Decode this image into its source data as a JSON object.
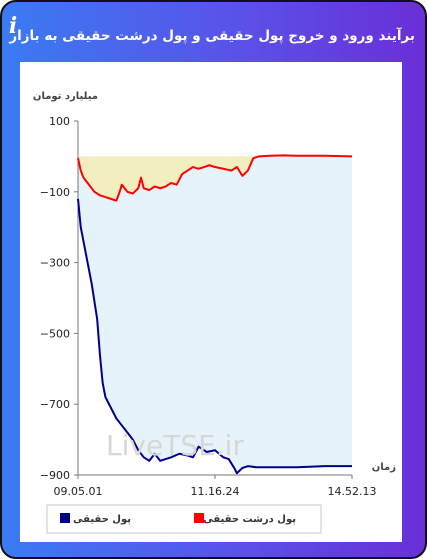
{
  "header": {
    "title": "برآیند ورود و خروج پول حقیقی و پول درشت حقیقی به بازار",
    "info_icon": "info-icon",
    "link_icon": "link-icon"
  },
  "chart_data": {
    "type": "area",
    "ylabel": "میلیارد تومان",
    "xlabel": "زمان",
    "ylim": [
      -900,
      100
    ],
    "yticks": [
      100,
      -100,
      -300,
      -500,
      -700,
      -900
    ],
    "x_tick_labels": [
      "09.05.01",
      "11.16.24",
      "14.52.13"
    ],
    "watermark": "LiveTSE.ir",
    "legend_position": "bottom",
    "series": [
      {
        "name": "پول حقیقی",
        "color": "#00008b",
        "fill": "#e6f3fb",
        "x": [
          0,
          0.01,
          0.03,
          0.05,
          0.07,
          0.08,
          0.09,
          0.1,
          0.12,
          0.14,
          0.16,
          0.18,
          0.2,
          0.22,
          0.24,
          0.26,
          0.28,
          0.3,
          0.32,
          0.34,
          0.37,
          0.4,
          0.42,
          0.44,
          0.47,
          0.5,
          0.53,
          0.55,
          0.57,
          0.58,
          0.6,
          0.62,
          0.65,
          0.7,
          0.8,
          0.9,
          1.0
        ],
        "values": [
          -120,
          -200,
          -280,
          -360,
          -460,
          -560,
          -640,
          -680,
          -710,
          -740,
          -760,
          -780,
          -800,
          -830,
          -850,
          -860,
          -840,
          -860,
          -855,
          -850,
          -840,
          -845,
          -850,
          -820,
          -835,
          -830,
          -850,
          -855,
          -880,
          -895,
          -880,
          -875,
          -878,
          -878,
          -878,
          -875,
          -875
        ]
      },
      {
        "name": "پول درشت حقیقی",
        "color": "#ff0000",
        "fill": "#f3eebf",
        "x": [
          0,
          0.01,
          0.02,
          0.04,
          0.06,
          0.08,
          0.1,
          0.12,
          0.14,
          0.15,
          0.16,
          0.18,
          0.2,
          0.22,
          0.23,
          0.24,
          0.26,
          0.28,
          0.3,
          0.32,
          0.34,
          0.36,
          0.38,
          0.4,
          0.42,
          0.44,
          0.46,
          0.48,
          0.5,
          0.53,
          0.56,
          0.58,
          0.6,
          0.62,
          0.64,
          0.66,
          0.7,
          0.75,
          0.8,
          0.9,
          1.0
        ],
        "values": [
          -5,
          -40,
          -60,
          -80,
          -100,
          -110,
          -115,
          -120,
          -125,
          -105,
          -80,
          -100,
          -105,
          -90,
          -60,
          -90,
          -95,
          -85,
          -90,
          -85,
          -75,
          -80,
          -50,
          -40,
          -30,
          -35,
          -30,
          -25,
          -30,
          -35,
          -40,
          -30,
          -55,
          -40,
          -5,
          0,
          2,
          3,
          2,
          2,
          0
        ]
      }
    ]
  },
  "legend": {
    "items": [
      {
        "label": "پول حقیقی",
        "color": "#00008b"
      },
      {
        "label": "پول درشت حقیقی",
        "color": "#ff0000"
      }
    ]
  }
}
